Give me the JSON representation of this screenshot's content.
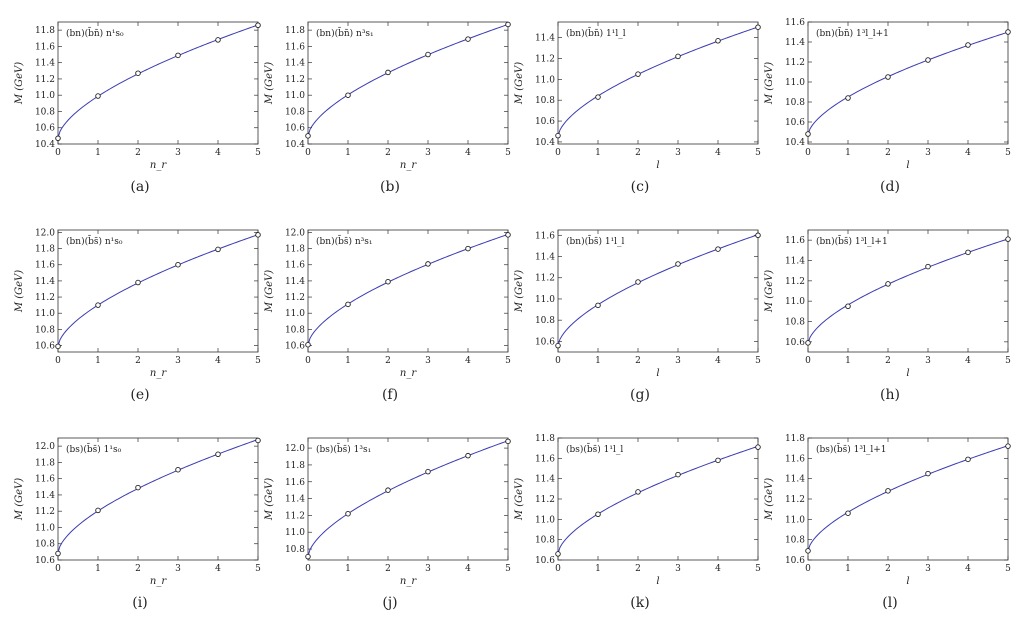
{
  "chart_data": [
    {
      "type": "line",
      "caption": "(a)",
      "annotation": "(bn)(b̄n̄) n¹s₀",
      "xlabel": "n_r",
      "ylabel": "M (GeV)",
      "x": [
        0,
        1,
        2,
        3,
        4,
        5
      ],
      "values": [
        10.47,
        10.99,
        11.27,
        11.49,
        11.68,
        11.86
      ],
      "ylim": [
        10.4,
        11.9
      ],
      "yticks": [
        10.4,
        10.6,
        10.8,
        11.0,
        11.2,
        11.4,
        11.6,
        11.8
      ],
      "xticks": [
        0,
        1,
        2,
        3,
        4,
        5
      ],
      "color": "#3b3bb3"
    },
    {
      "type": "line",
      "caption": "(b)",
      "annotation": "(bn)(b̄n̄) n³s₁",
      "xlabel": "n_r",
      "ylabel": "M (GeV)",
      "x": [
        0,
        1,
        2,
        3,
        4,
        5
      ],
      "values": [
        10.5,
        11.0,
        11.28,
        11.5,
        11.69,
        11.87
      ],
      "ylim": [
        10.4,
        11.9
      ],
      "yticks": [
        10.4,
        10.6,
        10.8,
        11.0,
        11.2,
        11.4,
        11.6,
        11.8
      ],
      "xticks": [
        0,
        1,
        2,
        3,
        4,
        5
      ],
      "color": "#3b3bb3"
    },
    {
      "type": "line",
      "caption": "(c)",
      "annotation": "(bn)(b̄n̄) 1¹l_l",
      "xlabel": "l",
      "ylabel": "M (GeV)",
      "x": [
        0,
        1,
        2,
        3,
        4,
        5
      ],
      "values": [
        10.46,
        10.83,
        11.05,
        11.22,
        11.37,
        11.5
      ],
      "ylim": [
        10.38,
        11.55
      ],
      "yticks": [
        10.4,
        10.6,
        10.8,
        11.0,
        11.2,
        11.4
      ],
      "xticks": [
        0,
        1,
        2,
        3,
        4,
        5
      ],
      "color": "#3b3bb3"
    },
    {
      "type": "line",
      "caption": "(d)",
      "annotation": "(bn)(b̄n̄) 1³l_l+1",
      "xlabel": "l",
      "ylabel": "M (GeV)",
      "x": [
        0,
        1,
        2,
        3,
        4,
        5
      ],
      "values": [
        10.48,
        10.84,
        11.05,
        11.22,
        11.37,
        11.5
      ],
      "ylim": [
        10.38,
        11.6
      ],
      "yticks": [
        10.4,
        10.6,
        10.8,
        11.0,
        11.2,
        11.4,
        11.6
      ],
      "xticks": [
        0,
        1,
        2,
        3,
        4,
        5
      ],
      "color": "#3b3bb3"
    },
    {
      "type": "line",
      "caption": "(e)",
      "annotation": "(bn)(b̄s̄) n¹s₀",
      "xlabel": "n_r",
      "ylabel": "M (GeV)",
      "x": [
        0,
        1,
        2,
        3,
        4,
        5
      ],
      "values": [
        10.59,
        11.1,
        11.38,
        11.6,
        11.79,
        11.97
      ],
      "ylim": [
        10.52,
        12.03
      ],
      "yticks": [
        10.6,
        10.8,
        11.0,
        11.2,
        11.4,
        11.6,
        11.8,
        12.0
      ],
      "xticks": [
        0,
        1,
        2,
        3,
        4,
        5
      ],
      "color": "#3b3bb3"
    },
    {
      "type": "line",
      "caption": "(f)",
      "annotation": "(bn)(b̄s̄) n³s₁",
      "xlabel": "n_r",
      "ylabel": "M (GeV)",
      "x": [
        0,
        1,
        2,
        3,
        4,
        5
      ],
      "values": [
        10.61,
        11.11,
        11.39,
        11.61,
        11.8,
        11.97
      ],
      "ylim": [
        10.52,
        12.03
      ],
      "yticks": [
        10.6,
        10.8,
        11.0,
        11.2,
        11.4,
        11.6,
        11.8,
        12.0
      ],
      "xticks": [
        0,
        1,
        2,
        3,
        4,
        5
      ],
      "color": "#3b3bb3"
    },
    {
      "type": "line",
      "caption": "(g)",
      "annotation": "(bn)(b̄s̄) 1¹l_l",
      "xlabel": "l",
      "ylabel": "M (GeV)",
      "x": [
        0,
        1,
        2,
        3,
        4,
        5
      ],
      "values": [
        10.56,
        10.94,
        11.16,
        11.33,
        11.47,
        11.6
      ],
      "ylim": [
        10.5,
        11.65
      ],
      "yticks": [
        10.6,
        10.8,
        11.0,
        11.2,
        11.4,
        11.6
      ],
      "xticks": [
        0,
        1,
        2,
        3,
        4,
        5
      ],
      "color": "#3b3bb3"
    },
    {
      "type": "line",
      "caption": "(h)",
      "annotation": "(bn)(b̄s̄) 1³l_l+1",
      "xlabel": "l",
      "ylabel": "M (GeV)",
      "x": [
        0,
        1,
        2,
        3,
        4,
        5
      ],
      "values": [
        10.59,
        10.95,
        11.17,
        11.34,
        11.48,
        11.61
      ],
      "ylim": [
        10.5,
        11.7
      ],
      "yticks": [
        10.6,
        10.8,
        11.0,
        11.2,
        11.4,
        11.6
      ],
      "xticks": [
        0,
        1,
        2,
        3,
        4,
        5
      ],
      "color": "#3b3bb3"
    },
    {
      "type": "line",
      "caption": "(i)",
      "annotation": "(bs)(b̄s̄) 1¹s₀",
      "xlabel": "n_r",
      "ylabel": "M (GeV)",
      "x": [
        0,
        1,
        2,
        3,
        4,
        5
      ],
      "values": [
        10.68,
        11.21,
        11.49,
        11.71,
        11.9,
        12.07
      ],
      "ylim": [
        10.6,
        12.1
      ],
      "yticks": [
        10.6,
        10.8,
        11.0,
        11.2,
        11.4,
        11.6,
        11.8,
        12.0
      ],
      "xticks": [
        0,
        1,
        2,
        3,
        4,
        5
      ],
      "color": "#3b3bb3"
    },
    {
      "type": "line",
      "caption": "(j)",
      "annotation": "(bs)(b̄s̄) 1³s₁",
      "xlabel": "n_r",
      "ylabel": "M (GeV)",
      "x": [
        0,
        1,
        2,
        3,
        4,
        5
      ],
      "values": [
        10.71,
        11.22,
        11.5,
        11.72,
        11.91,
        12.08
      ],
      "ylim": [
        10.67,
        12.12
      ],
      "yticks": [
        10.8,
        11.0,
        11.2,
        11.4,
        11.6,
        11.8,
        12.0
      ],
      "xticks": [
        0,
        1,
        2,
        3,
        4,
        5
      ],
      "color": "#3b3bb3"
    },
    {
      "type": "line",
      "caption": "(k)",
      "annotation": "(bs)(b̄s̄) 1¹l_l",
      "xlabel": "l",
      "ylabel": "M (GeV)",
      "x": [
        0,
        1,
        2,
        3,
        4,
        5
      ],
      "values": [
        10.66,
        11.05,
        11.27,
        11.44,
        11.58,
        11.71
      ],
      "ylim": [
        10.6,
        11.8
      ],
      "yticks": [
        10.6,
        10.8,
        11.0,
        11.2,
        11.4,
        11.6,
        11.8
      ],
      "xticks": [
        0,
        1,
        2,
        3,
        4,
        5
      ],
      "color": "#3b3bb3"
    },
    {
      "type": "line",
      "caption": "(l)",
      "annotation": "(bs)(b̄s̄) 1³l_l+1",
      "xlabel": "l",
      "ylabel": "M (GeV)",
      "x": [
        0,
        1,
        2,
        3,
        4,
        5
      ],
      "values": [
        10.69,
        11.06,
        11.28,
        11.45,
        11.59,
        11.72
      ],
      "ylim": [
        10.6,
        11.8
      ],
      "yticks": [
        10.6,
        10.8,
        11.0,
        11.2,
        11.4,
        11.6,
        11.8
      ],
      "xticks": [
        0,
        1,
        2,
        3,
        4,
        5
      ],
      "color": "#3b3bb3"
    }
  ]
}
